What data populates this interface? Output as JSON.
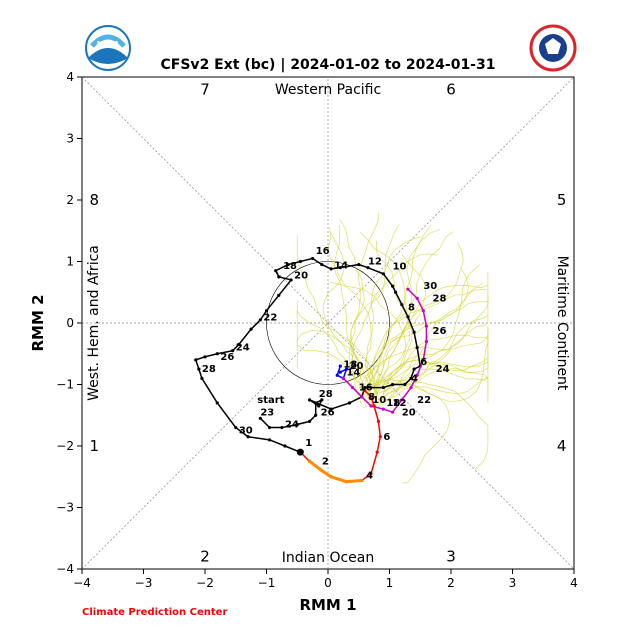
{
  "logos": {
    "left": {
      "name": "noaa-logo",
      "text": "NOAA",
      "color": "#1b75bb"
    },
    "right": {
      "name": "nws-logo",
      "text": "NATIONAL WEATHER SERVICE",
      "color": "#1a3f8f",
      "ring_color": "#d9262c"
    }
  },
  "footer": {
    "credit": "Climate Prediction Center",
    "color": "#ff0000"
  },
  "colors": {
    "obs_black": "#000000",
    "obs_blue": "#0000ff",
    "obs_magenta": "#cc00cc",
    "fc_red": "#ff0000",
    "fc_orange": "#ff8c00",
    "ensemble": "#d4d430"
  },
  "chart_data": {
    "type": "line",
    "title": "CFSv2 Ext (bc) | 2024-01-02 to 2024-01-31",
    "xlabel": "RMM 1",
    "ylabel": "RMM 2",
    "xlim": [
      -4,
      4
    ],
    "ylim": [
      -4,
      4
    ],
    "xticks": [
      "−4",
      "−3",
      "−2",
      "−1",
      "0",
      "1",
      "2",
      "3",
      "4"
    ],
    "yticks": [
      "−4",
      "−3",
      "−2",
      "−1",
      "0",
      "1",
      "2",
      "3",
      "4"
    ],
    "grid": "diagonal and axial dashed reference lines",
    "unit_circle_radius": 1,
    "phase_numbers": [
      {
        "label": "1",
        "x": -3.8,
        "y": -2.0
      },
      {
        "label": "2",
        "x": -2.0,
        "y": -3.8
      },
      {
        "label": "3",
        "x": 2.0,
        "y": -3.8
      },
      {
        "label": "4",
        "x": 3.8,
        "y": -2.0
      },
      {
        "label": "5",
        "x": 3.8,
        "y": 2.0
      },
      {
        "label": "6",
        "x": 2.0,
        "y": 3.8
      },
      {
        "label": "7",
        "x": -2.0,
        "y": 3.8
      },
      {
        "label": "8",
        "x": -3.8,
        "y": 2.0
      }
    ],
    "region_labels": {
      "top": "Western Pacific",
      "bottom": "Indian Ocean",
      "left": "West. Hem. and Africa",
      "right": "Maritime Continent"
    },
    "series": [
      {
        "name": "observed",
        "segments": [
          {
            "color": "#000000",
            "points": [
              [
                -1.1,
                -1.55
              ],
              [
                -0.95,
                -1.7
              ],
              [
                -0.75,
                -1.7
              ],
              [
                -0.5,
                -1.65
              ],
              [
                -0.3,
                -1.6
              ],
              [
                -0.2,
                -1.5
              ],
              [
                -0.2,
                -1.3
              ],
              [
                -0.1,
                -1.25
              ],
              [
                -0.15,
                -1.35
              ],
              [
                -0.3,
                -1.25
              ],
              [
                0.05,
                -1.4
              ],
              [
                0.35,
                -1.3
              ],
              [
                0.55,
                -1.2
              ],
              [
                0.6,
                -1.05
              ],
              [
                0.9,
                -1.05
              ],
              [
                1.05,
                -1.0
              ],
              [
                1.25,
                -1.0
              ],
              [
                1.35,
                -0.9
              ],
              [
                1.4,
                -0.75
              ],
              [
                1.5,
                -0.7
              ],
              [
                1.45,
                -0.4
              ],
              [
                1.4,
                -0.15
              ],
              [
                1.3,
                0.1
              ],
              [
                1.2,
                0.3
              ],
              [
                1.1,
                0.5
              ],
              [
                1.05,
                0.6
              ],
              [
                0.9,
                0.8
              ],
              [
                0.65,
                0.9
              ],
              [
                0.5,
                0.95
              ],
              [
                0.2,
                0.9
              ],
              [
                0.05,
                0.88
              ],
              [
                -0.1,
                0.95
              ],
              [
                -0.25,
                1.05
              ],
              [
                -0.45,
                1.0
              ],
              [
                -0.65,
                0.95
              ],
              [
                -0.85,
                0.85
              ],
              [
                -0.8,
                0.75
              ],
              [
                -0.6,
                0.7
              ],
              [
                -0.8,
                0.45
              ],
              [
                -1.0,
                0.2
              ],
              [
                -1.1,
                0.05
              ],
              [
                -1.25,
                -0.1
              ],
              [
                -1.45,
                -0.35
              ],
              [
                -1.55,
                -0.45
              ],
              [
                -1.8,
                -0.5
              ],
              [
                -2.0,
                -0.55
              ],
              [
                -2.15,
                -0.6
              ],
              [
                -2.1,
                -0.75
              ],
              [
                -2.05,
                -0.9
              ],
              [
                -1.8,
                -1.3
              ],
              [
                -1.5,
                -1.7
              ],
              [
                -1.3,
                -1.85
              ],
              [
                -0.95,
                -1.9
              ],
              [
                -0.7,
                -2.0
              ],
              [
                -0.45,
                -2.1
              ]
            ]
          },
          {
            "color": "#0000ff",
            "points": [
              [
                0.2,
                -0.7
              ],
              [
                0.15,
                -0.85
              ],
              [
                0.25,
                -0.9
              ],
              [
                0.3,
                -0.75
              ],
              [
                0.2,
                -0.8
              ]
            ]
          },
          {
            "color": "#cc00cc",
            "points": [
              [
                1.3,
                0.55
              ],
              [
                1.45,
                0.4
              ],
              [
                1.55,
                0.2
              ],
              [
                1.6,
                -0.05
              ],
              [
                1.6,
                -0.3
              ],
              [
                1.55,
                -0.6
              ],
              [
                1.45,
                -0.85
              ],
              [
                1.35,
                -1.05
              ],
              [
                1.2,
                -1.25
              ],
              [
                1.05,
                -1.45
              ],
              [
                0.9,
                -1.4
              ],
              [
                0.7,
                -1.35
              ],
              [
                0.55,
                -1.2
              ],
              [
                0.4,
                -1.05
              ],
              [
                0.25,
                -0.9
              ]
            ]
          }
        ],
        "labels": [
          {
            "text": "start",
            "x": -1.15,
            "y": -1.3
          },
          {
            "text": "23",
            "x": -1.1,
            "y": -1.5
          },
          {
            "text": "24",
            "x": -0.7,
            "y": -1.7
          },
          {
            "text": "26",
            "x": -0.12,
            "y": -1.5
          },
          {
            "text": "28",
            "x": -0.15,
            "y": -1.2
          },
          {
            "text": "30",
            "x": -1.45,
            "y": -1.8
          },
          {
            "text": "1",
            "x": -0.37,
            "y": -2.0
          },
          {
            "text": "4",
            "x": 1.35,
            "y": -0.95
          },
          {
            "text": "6",
            "x": 1.5,
            "y": -0.68
          },
          {
            "text": "8",
            "x": 1.3,
            "y": 0.2
          },
          {
            "text": "10",
            "x": 1.05,
            "y": 0.87
          },
          {
            "text": "12",
            "x": 0.65,
            "y": 0.95
          },
          {
            "text": "14",
            "x": 0.1,
            "y": 0.89
          },
          {
            "text": "16",
            "x": -0.2,
            "y": 1.12
          },
          {
            "text": "18",
            "x": -0.73,
            "y": 0.88
          },
          {
            "text": "20",
            "x": -0.55,
            "y": 0.72
          },
          {
            "text": "22",
            "x": -1.05,
            "y": 0.04
          },
          {
            "text": "24",
            "x": -1.5,
            "y": -0.45
          },
          {
            "text": "26",
            "x": -1.75,
            "y": -0.6
          },
          {
            "text": "28",
            "x": -2.05,
            "y": -0.8
          },
          {
            "text": "30",
            "x": 1.55,
            "y": 0.55
          },
          {
            "text": "28",
            "x": 1.7,
            "y": 0.35
          },
          {
            "text": "26",
            "x": 1.7,
            "y": -0.18
          },
          {
            "text": "24",
            "x": 1.75,
            "y": -0.8
          },
          {
            "text": "22",
            "x": 1.45,
            "y": -1.3
          },
          {
            "text": "20",
            "x": 1.2,
            "y": -1.5
          },
          {
            "text": "18",
            "x": 0.95,
            "y": -1.35
          },
          {
            "text": "16",
            "x": 0.5,
            "y": -1.1
          },
          {
            "text": "12",
            "x": 1.05,
            "y": -1.35
          },
          {
            "text": "10",
            "x": 0.72,
            "y": -1.3
          },
          {
            "text": "8",
            "x": 0.65,
            "y": -1.25
          },
          {
            "text": "14",
            "x": 0.3,
            "y": -0.85
          },
          {
            "text": "20",
            "x": 0.35,
            "y": -0.75
          },
          {
            "text": "18",
            "x": 0.25,
            "y": -0.72
          }
        ]
      },
      {
        "name": "forecast",
        "segments": [
          {
            "color": "#ff0000",
            "points": [
              [
                -0.45,
                -2.1
              ],
              [
                -0.3,
                -2.25
              ],
              [
                -0.1,
                -2.4
              ],
              [
                0.05,
                -2.5
              ],
              [
                0.3,
                -2.58
              ],
              [
                0.55,
                -2.56
              ],
              [
                0.7,
                -2.45
              ],
              [
                0.8,
                -2.1
              ],
              [
                0.85,
                -1.85
              ],
              [
                0.82,
                -1.6
              ],
              [
                0.75,
                -1.35
              ],
              [
                0.7,
                -1.2
              ],
              [
                0.6,
                -1.1
              ]
            ]
          },
          {
            "color": "#ff8c00",
            "points": [
              [
                -0.3,
                -2.25
              ],
              [
                -0.1,
                -2.4
              ],
              [
                0.05,
                -2.5
              ],
              [
                0.3,
                -2.58
              ],
              [
                0.55,
                -2.56
              ]
            ]
          }
        ],
        "labels": [
          {
            "text": "2",
            "x": -0.1,
            "y": -2.3
          },
          {
            "text": "4",
            "x": 0.62,
            "y": -2.53
          },
          {
            "text": "6",
            "x": 0.9,
            "y": -1.9
          }
        ]
      }
    ]
  }
}
